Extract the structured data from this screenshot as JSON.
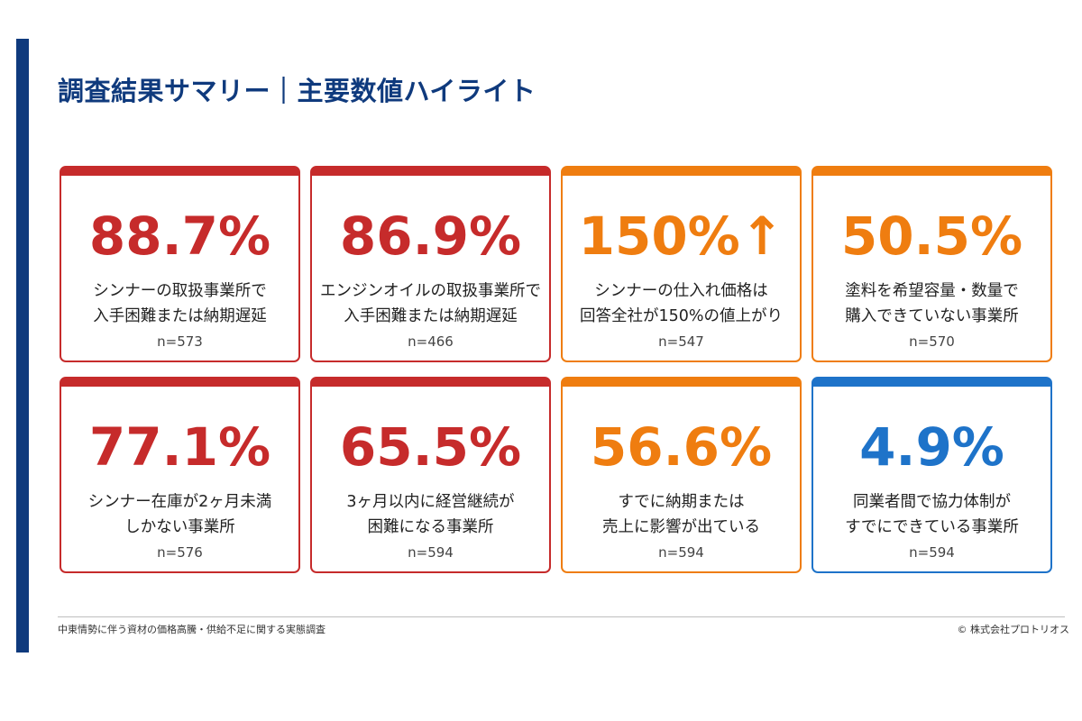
{
  "title": "調査結果サマリー｜主要数値ハイライト",
  "colors": {
    "navy": "#0f3a7d",
    "red": "#c62b2b",
    "orange": "#ef7d10",
    "blue": "#1e73c9"
  },
  "cards": [
    {
      "value": "88.7%",
      "line1": "シンナーの取扱事業所で",
      "line2": "入手困難または納期遅延",
      "n": "n=573",
      "color": "#c62b2b"
    },
    {
      "value": "86.9%",
      "line1": "エンジンオイルの取扱事業所で",
      "line2": "入手困難または納期遅延",
      "n": "n=466",
      "color": "#c62b2b"
    },
    {
      "value": "150%↑",
      "line1": "シンナーの仕入れ価格は",
      "line2": "回答全社が150%の値上がり",
      "n": "n=547",
      "color": "#ef7d10"
    },
    {
      "value": "50.5%",
      "line1": "塗料を希望容量・数量で",
      "line2": "購入できていない事業所",
      "n": "n=570",
      "color": "#ef7d10"
    },
    {
      "value": "77.1%",
      "line1": "シンナー在庫が2ヶ月未満",
      "line2": "しかない事業所",
      "n": "n=576",
      "color": "#c62b2b"
    },
    {
      "value": "65.5%",
      "line1": "3ヶ月以内に経営継続が",
      "line2": "困難になる事業所",
      "n": "n=594",
      "color": "#c62b2b"
    },
    {
      "value": "56.6%",
      "line1": "すでに納期または",
      "line2": "売上に影響が出ている",
      "n": "n=594",
      "color": "#ef7d10"
    },
    {
      "value": "4.9%",
      "line1": "同業者間で協力体制が",
      "line2": "すでにできている事業所",
      "n": "n=594",
      "color": "#1e73c9"
    }
  ],
  "footer": {
    "source": "中東情勢に伴う資材の価格高騰・供給不足に関する実態調査",
    "copyright": "© 株式会社プロトリオス"
  }
}
